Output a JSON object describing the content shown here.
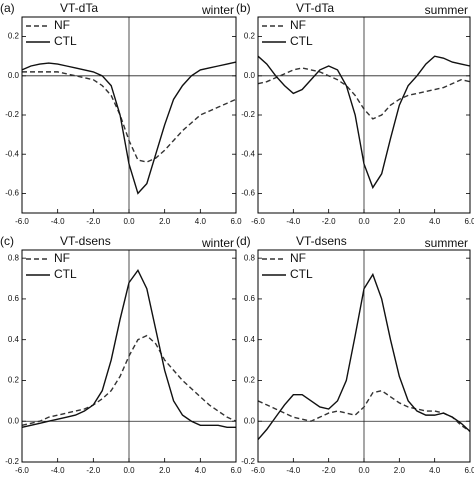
{
  "chart_data": [
    {
      "type": "line",
      "panel_label": "(a)",
      "title": "VT-dTa",
      "subtitle": "winter",
      "x": [
        -6,
        -5.5,
        -5,
        -4.5,
        -4,
        -3.5,
        -3,
        -2.5,
        -2,
        -1.5,
        -1,
        -0.5,
        0,
        0.5,
        1,
        1.5,
        2,
        2.5,
        3,
        3.5,
        4,
        4.5,
        5,
        5.5,
        6
      ],
      "series": [
        {
          "name": "NF",
          "color": "#333333",
          "dash": true,
          "values": [
            0.02,
            0.02,
            0.02,
            0.02,
            0.02,
            0.01,
            0.0,
            -0.01,
            -0.02,
            -0.05,
            -0.1,
            -0.2,
            -0.33,
            -0.43,
            -0.44,
            -0.42,
            -0.38,
            -0.33,
            -0.28,
            -0.24,
            -0.2,
            -0.18,
            -0.16,
            -0.14,
            -0.12
          ]
        },
        {
          "name": "CTL",
          "color": "#111111",
          "dash": false,
          "values": [
            0.03,
            0.05,
            0.06,
            0.065,
            0.06,
            0.05,
            0.04,
            0.03,
            0.02,
            0.0,
            -0.05,
            -0.2,
            -0.45,
            -0.6,
            -0.55,
            -0.4,
            -0.25,
            -0.12,
            -0.05,
            0.0,
            0.03,
            0.04,
            0.05,
            0.06,
            0.07
          ]
        }
      ],
      "xlim": [
        -6,
        6
      ],
      "ylim": [
        -0.7,
        0.3
      ],
      "xticks": [
        {
          "value": -6,
          "label": "-6.0"
        },
        {
          "value": -4,
          "label": "-4.0"
        },
        {
          "value": -2,
          "label": "-2.0"
        },
        {
          "value": 0,
          "label": "0.0"
        },
        {
          "value": 2,
          "label": "2.0"
        },
        {
          "value": 4,
          "label": "4.0"
        },
        {
          "value": 6,
          "label": "6.0"
        }
      ],
      "yticks": [
        -0.6,
        -0.4,
        -0.2,
        {
          "value": 0,
          "label": "0.0"
        },
        0.2
      ],
      "legend": "top-left"
    },
    {
      "type": "line",
      "panel_label": "(b)",
      "title": "VT-dTa",
      "subtitle": "summer",
      "x": [
        -6,
        -5.5,
        -5,
        -4.5,
        -4,
        -3.5,
        -3,
        -2.5,
        -2,
        -1.5,
        -1,
        -0.5,
        0,
        0.5,
        1,
        1.5,
        2,
        2.5,
        3,
        3.5,
        4,
        4.5,
        5,
        5.5,
        6
      ],
      "series": [
        {
          "name": "NF",
          "color": "#333333",
          "dash": true,
          "values": [
            -0.04,
            -0.03,
            -0.01,
            0.01,
            0.03,
            0.04,
            0.03,
            0.02,
            0.0,
            -0.02,
            -0.05,
            -0.1,
            -0.17,
            -0.22,
            -0.2,
            -0.15,
            -0.12,
            -0.1,
            -0.09,
            -0.08,
            -0.07,
            -0.06,
            -0.04,
            -0.02,
            -0.03
          ]
        },
        {
          "name": "CTL",
          "color": "#111111",
          "dash": false,
          "values": [
            0.1,
            0.06,
            0.0,
            -0.05,
            -0.09,
            -0.07,
            -0.02,
            0.03,
            0.05,
            0.03,
            -0.05,
            -0.2,
            -0.45,
            -0.57,
            -0.5,
            -0.32,
            -0.15,
            -0.05,
            0.0,
            0.06,
            0.1,
            0.09,
            0.07,
            0.06,
            0.05
          ]
        }
      ],
      "xlim": [
        -6,
        6
      ],
      "ylim": [
        -0.7,
        0.3
      ],
      "xticks": [
        {
          "value": -6,
          "label": "-6.0"
        },
        {
          "value": -4,
          "label": "-4.0"
        },
        {
          "value": -2,
          "label": "-2.0"
        },
        {
          "value": 0,
          "label": "0.0"
        },
        {
          "value": 2,
          "label": "2.0"
        },
        {
          "value": 4,
          "label": "4.0"
        },
        {
          "value": 6,
          "label": "6.0"
        }
      ],
      "yticks": [
        -0.6,
        -0.4,
        -0.2,
        {
          "value": 0,
          "label": "0.0"
        },
        0.2
      ],
      "legend": "top-left"
    },
    {
      "type": "line",
      "panel_label": "(c)",
      "title": "VT-dsens",
      "subtitle": "winter",
      "x": [
        -6,
        -5.5,
        -5,
        -4.5,
        -4,
        -3.5,
        -3,
        -2.5,
        -2,
        -1.5,
        -1,
        -0.5,
        0,
        0.5,
        1,
        1.5,
        2,
        2.5,
        3,
        3.5,
        4,
        4.5,
        5,
        5.5,
        6
      ],
      "series": [
        {
          "name": "NF",
          "color": "#333333",
          "dash": true,
          "values": [
            -0.02,
            -0.01,
            0.0,
            0.02,
            0.03,
            0.04,
            0.05,
            0.06,
            0.08,
            0.11,
            0.15,
            0.22,
            0.32,
            0.4,
            0.42,
            0.38,
            0.3,
            0.25,
            0.2,
            0.16,
            0.12,
            0.08,
            0.05,
            0.02,
            0.0
          ]
        },
        {
          "name": "CTL",
          "color": "#111111",
          "dash": false,
          "values": [
            -0.03,
            -0.02,
            -0.01,
            0.0,
            0.01,
            0.02,
            0.03,
            0.05,
            0.08,
            0.15,
            0.3,
            0.5,
            0.68,
            0.74,
            0.65,
            0.45,
            0.25,
            0.1,
            0.03,
            0.0,
            -0.02,
            -0.02,
            -0.02,
            -0.03,
            -0.03
          ]
        }
      ],
      "xlim": [
        -6,
        6
      ],
      "ylim": [
        -0.2,
        0.84
      ],
      "xticks": [
        {
          "value": -6,
          "label": "-6.0"
        },
        {
          "value": -4,
          "label": "-4.0"
        },
        {
          "value": -2,
          "label": "-2.0"
        },
        {
          "value": 0,
          "label": "0.0"
        },
        {
          "value": 2,
          "label": "2.0"
        },
        {
          "value": 4,
          "label": "4.0"
        },
        {
          "value": 6,
          "label": "6.0"
        }
      ],
      "yticks": [
        -0.2,
        {
          "value": 0,
          "label": "0.0"
        },
        0.2,
        0.4,
        0.6,
        0.8
      ],
      "legend": "top-left"
    },
    {
      "type": "line",
      "panel_label": "(d)",
      "title": "VT-dsens",
      "subtitle": "summer",
      "x": [
        -6,
        -5.5,
        -5,
        -4.5,
        -4,
        -3.5,
        -3,
        -2.5,
        -2,
        -1.5,
        -1,
        -0.5,
        0,
        0.5,
        1,
        1.5,
        2,
        2.5,
        3,
        3.5,
        4,
        4.5,
        5,
        5.5,
        6
      ],
      "series": [
        {
          "name": "NF",
          "color": "#333333",
          "dash": true,
          "values": [
            0.1,
            0.08,
            0.06,
            0.04,
            0.02,
            0.01,
            0.0,
            0.02,
            0.04,
            0.05,
            0.04,
            0.03,
            0.07,
            0.14,
            0.15,
            0.12,
            0.09,
            0.07,
            0.06,
            0.05,
            0.05,
            0.04,
            0.02,
            -0.02,
            -0.05
          ]
        },
        {
          "name": "CTL",
          "color": "#111111",
          "dash": false,
          "values": [
            -0.09,
            -0.04,
            0.02,
            0.08,
            0.13,
            0.13,
            0.1,
            0.07,
            0.06,
            0.1,
            0.2,
            0.42,
            0.65,
            0.72,
            0.6,
            0.4,
            0.22,
            0.1,
            0.05,
            0.03,
            0.03,
            0.04,
            0.02,
            -0.01,
            -0.05
          ]
        }
      ],
      "xlim": [
        -6,
        6
      ],
      "ylim": [
        -0.2,
        0.84
      ],
      "xticks": [
        {
          "value": -6,
          "label": "-6.0"
        },
        {
          "value": -4,
          "label": "-4.0"
        },
        {
          "value": -2,
          "label": "-2.0"
        },
        {
          "value": 0,
          "label": "0.0"
        },
        {
          "value": 2,
          "label": "2.0"
        },
        {
          "value": 4,
          "label": "4.0"
        },
        {
          "value": 6,
          "label": "6.0"
        }
      ],
      "yticks": [
        -0.2,
        {
          "value": 0,
          "label": "0.0"
        },
        0.2,
        0.4,
        0.6,
        0.8
      ],
      "legend": "top-left"
    }
  ]
}
